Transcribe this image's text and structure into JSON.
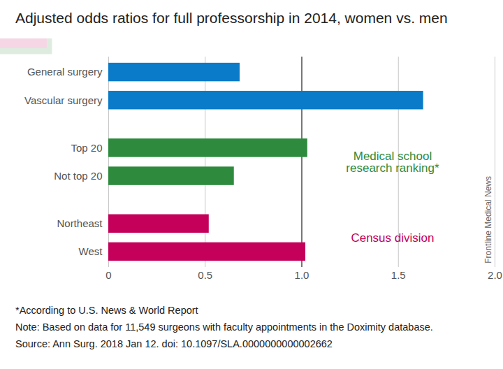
{
  "chart_data": {
    "type": "bar",
    "orientation": "horizontal",
    "title": "Adjusted odds ratios for full professorship in 2014, women vs. men",
    "categories": [
      "General surgery",
      "Vascular surgery",
      "Top 20",
      "Not top 20",
      "Northeast",
      "West"
    ],
    "values": [
      0.68,
      1.63,
      1.03,
      0.65,
      0.52,
      1.02
    ],
    "colors": [
      "#0a7bc8",
      "#0a7bc8",
      "#2e8b3e",
      "#2e8b3e",
      "#c4005a",
      "#c4005a"
    ],
    "xlim": [
      0,
      2
    ],
    "xticks": [
      0,
      0.5,
      {
        "value": 1,
        "label": "1.0"
      },
      1.5,
      {
        "value": 2,
        "label": "2.0"
      }
    ],
    "grid": true,
    "reference_line": 1,
    "annotations": [
      {
        "text": "Medical school research ranking*",
        "color": "#2e8b3e"
      },
      {
        "text": "Census division",
        "color": "#c4005a"
      }
    ],
    "notes": [
      "*According to U.S. News & World Report",
      "Note: Based on data for 11,549 surgeons with faculty appointments in the Doximity database.",
      "Source: Ann Surg. 2018 Jan 12. doi: 10.1097/SLA.0000000000002662"
    ],
    "credit": "Frontline Medical News"
  }
}
